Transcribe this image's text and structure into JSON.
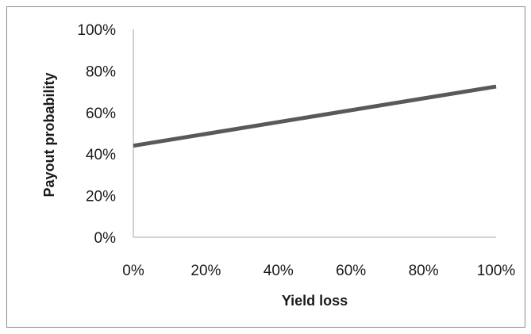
{
  "chart_data": {
    "type": "line",
    "title": "",
    "xlabel": "Yield loss",
    "ylabel": "Payout probability",
    "x_ticks": [
      "0%",
      "20%",
      "40%",
      "60%",
      "80%",
      "100%"
    ],
    "y_ticks": [
      "0%",
      "20%",
      "40%",
      "60%",
      "80%",
      "100%"
    ],
    "xlim": [
      0,
      100
    ],
    "ylim": [
      0,
      100
    ],
    "grid": false,
    "legend": "none",
    "series": [
      {
        "x": [
          0,
          100
        ],
        "y": [
          44,
          72.5
        ],
        "color": "#595959"
      }
    ]
  }
}
